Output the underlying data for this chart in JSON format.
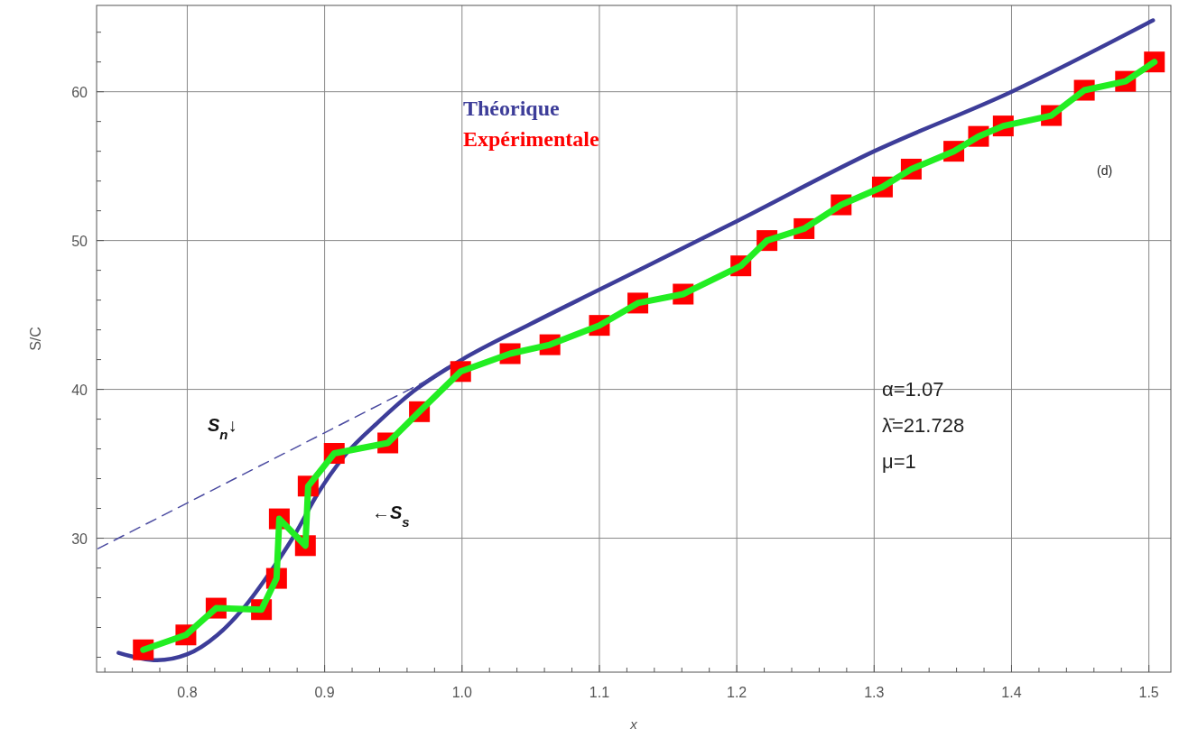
{
  "chart_data": {
    "type": "line",
    "xlabel": "x",
    "ylabel": "S/C",
    "xlim": [
      0.734,
      1.516
    ],
    "ylim": [
      21,
      65.8
    ],
    "xticks": [
      {
        "value": 0.74,
        "label": null
      },
      {
        "value": 0.76,
        "label": null
      },
      {
        "value": 0.78,
        "label": null
      },
      0.8,
      {
        "value": 0.82,
        "label": null
      },
      {
        "value": 0.84,
        "label": null
      },
      {
        "value": 0.86,
        "label": null
      },
      {
        "value": 0.88,
        "label": null
      },
      0.9,
      {
        "value": 0.92,
        "label": null
      },
      {
        "value": 0.94,
        "label": null
      },
      {
        "value": 0.96,
        "label": null
      },
      {
        "value": 0.98,
        "label": null
      },
      {
        "value": 1.0,
        "label": "1.0"
      },
      {
        "value": 1.02,
        "label": null
      },
      {
        "value": 1.04,
        "label": null
      },
      {
        "value": 1.06,
        "label": null
      },
      {
        "value": 1.08,
        "label": null
      },
      1.1,
      {
        "value": 1.12,
        "label": null
      },
      {
        "value": 1.14,
        "label": null
      },
      {
        "value": 1.16,
        "label": null
      },
      {
        "value": 1.18,
        "label": null
      },
      1.2,
      {
        "value": 1.22,
        "label": null
      },
      {
        "value": 1.24,
        "label": null
      },
      {
        "value": 1.26,
        "label": null
      },
      {
        "value": 1.28,
        "label": null
      },
      1.3,
      {
        "value": 1.32,
        "label": null
      },
      {
        "value": 1.34,
        "label": null
      },
      {
        "value": 1.36,
        "label": null
      },
      {
        "value": 1.38,
        "label": null
      },
      1.4,
      {
        "value": 1.42,
        "label": null
      },
      {
        "value": 1.44,
        "label": null
      },
      {
        "value": 1.46,
        "label": null
      },
      {
        "value": 1.48,
        "label": null
      },
      1.5
    ],
    "yticks": [
      {
        "value": 22,
        "label": null
      },
      {
        "value": 24,
        "label": null
      },
      {
        "value": 26,
        "label": null
      },
      {
        "value": 28,
        "label": null
      },
      30,
      {
        "value": 32,
        "label": null
      },
      {
        "value": 34,
        "label": null
      },
      {
        "value": 36,
        "label": null
      },
      {
        "value": 38,
        "label": null
      },
      40,
      {
        "value": 42,
        "label": null
      },
      {
        "value": 44,
        "label": null
      },
      {
        "value": 46,
        "label": null
      },
      {
        "value": 48,
        "label": null
      },
      50,
      {
        "value": 52,
        "label": null
      },
      {
        "value": 54,
        "label": null
      },
      {
        "value": 56,
        "label": null
      },
      {
        "value": 58,
        "label": null
      },
      60,
      {
        "value": 62,
        "label": null
      },
      {
        "value": 64,
        "label": null
      }
    ],
    "grid": true,
    "legend": "top",
    "series": [
      {
        "name": "Théorique",
        "color": "#3d3d99",
        "x": [
          0.75,
          0.778,
          0.8,
          0.822,
          0.841,
          0.861,
          0.878,
          0.895,
          0.915,
          0.939,
          0.965,
          0.991,
          1.0,
          1.05,
          1.1,
          1.2,
          1.3,
          1.4,
          1.503
        ],
        "values": [
          22.3,
          21.8,
          22.2,
          23.5,
          25.3,
          27.8,
          30.2,
          33.0,
          35.6,
          37.8,
          39.9,
          41.5,
          42.0,
          44.4,
          46.7,
          51.3,
          56.0,
          60.0,
          64.8
        ]
      },
      {
        "type": "line",
        "color": "#4a4aa0",
        "line_style": "dashed",
        "x": [
          0.735,
          0.983
        ],
        "values": [
          29.3,
          41.0
        ]
      },
      {
        "name": "Expérimentale",
        "type": "scatter",
        "color": "#ff0000",
        "marker": "square",
        "x": [
          0.768,
          0.799,
          0.821,
          0.854,
          0.865,
          0.867,
          0.886,
          0.888,
          0.907,
          0.946,
          0.969,
          0.999,
          1.035,
          1.064,
          1.1,
          1.128,
          1.161,
          1.203,
          1.222,
          1.249,
          1.276,
          1.306,
          1.327,
          1.358,
          1.376,
          1.394,
          1.429,
          1.453,
          1.483,
          1.504
        ],
        "values": [
          22.5,
          23.5,
          25.3,
          25.2,
          27.3,
          31.3,
          29.5,
          33.5,
          35.7,
          36.4,
          38.5,
          41.2,
          42.4,
          43.0,
          44.3,
          45.8,
          46.4,
          48.3,
          50.0,
          50.8,
          52.4,
          53.6,
          54.8,
          56.0,
          57.0,
          57.7,
          58.4,
          60.1,
          60.7,
          62.0
        ]
      },
      {
        "color": "#22ee22",
        "x": [
          0.768,
          0.799,
          0.821,
          0.854,
          0.865,
          0.867,
          0.886,
          0.888,
          0.907,
          0.946,
          0.969,
          0.999,
          1.035,
          1.064,
          1.1,
          1.128,
          1.161,
          1.203,
          1.222,
          1.249,
          1.276,
          1.306,
          1.327,
          1.358,
          1.376,
          1.394,
          1.429,
          1.453,
          1.483,
          1.504
        ],
        "values": [
          22.5,
          23.5,
          25.3,
          25.2,
          27.3,
          31.3,
          29.5,
          33.5,
          35.7,
          36.4,
          38.5,
          41.2,
          42.4,
          43.0,
          44.3,
          45.8,
          46.4,
          48.3,
          50.0,
          50.8,
          52.4,
          53.6,
          54.8,
          56.0,
          57.0,
          57.7,
          58.4,
          60.1,
          60.7,
          62.0
        ]
      }
    ],
    "annotations": [
      "S$_{n}$↓",
      "←S$_{s}$",
      "(d)",
      "α=1.07",
      "λ̄=21.728",
      "μ=1"
    ]
  }
}
